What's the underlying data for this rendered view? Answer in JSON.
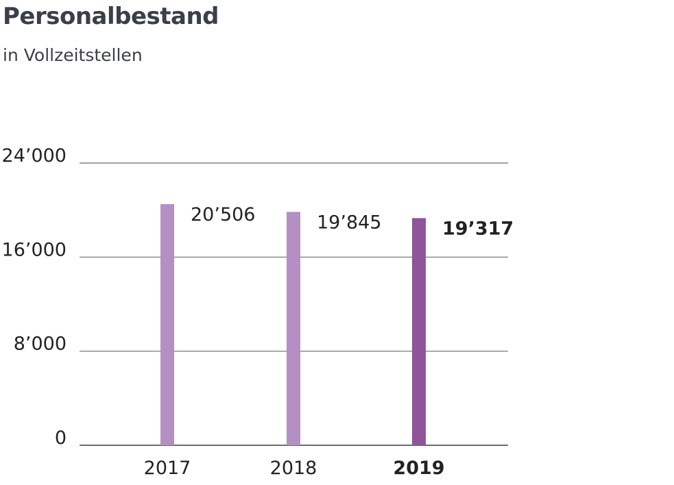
{
  "header": {
    "title": "Personalbestand",
    "subtitle": "in Vollzeitstellen"
  },
  "colors": {
    "bar_previous": "#b48fc3",
    "bar_current": "#8e559b",
    "gridline": "#6b6b6b",
    "text": "#222222",
    "title": "#3b3f48"
  },
  "chart_data": {
    "type": "bar",
    "categories": [
      "2017",
      "2018",
      "2019"
    ],
    "values": [
      20506,
      19845,
      19317
    ],
    "value_labels": [
      "20’506",
      "19’845",
      "19’317"
    ],
    "highlight_index": 2,
    "ylim": [
      0,
      24000
    ],
    "yticks": [
      0,
      8000,
      16000,
      24000
    ],
    "ytick_labels": [
      "0",
      "8’000",
      "16’000",
      "24’000"
    ],
    "grid": true,
    "legend": "none",
    "xlabel": "",
    "ylabel": ""
  }
}
